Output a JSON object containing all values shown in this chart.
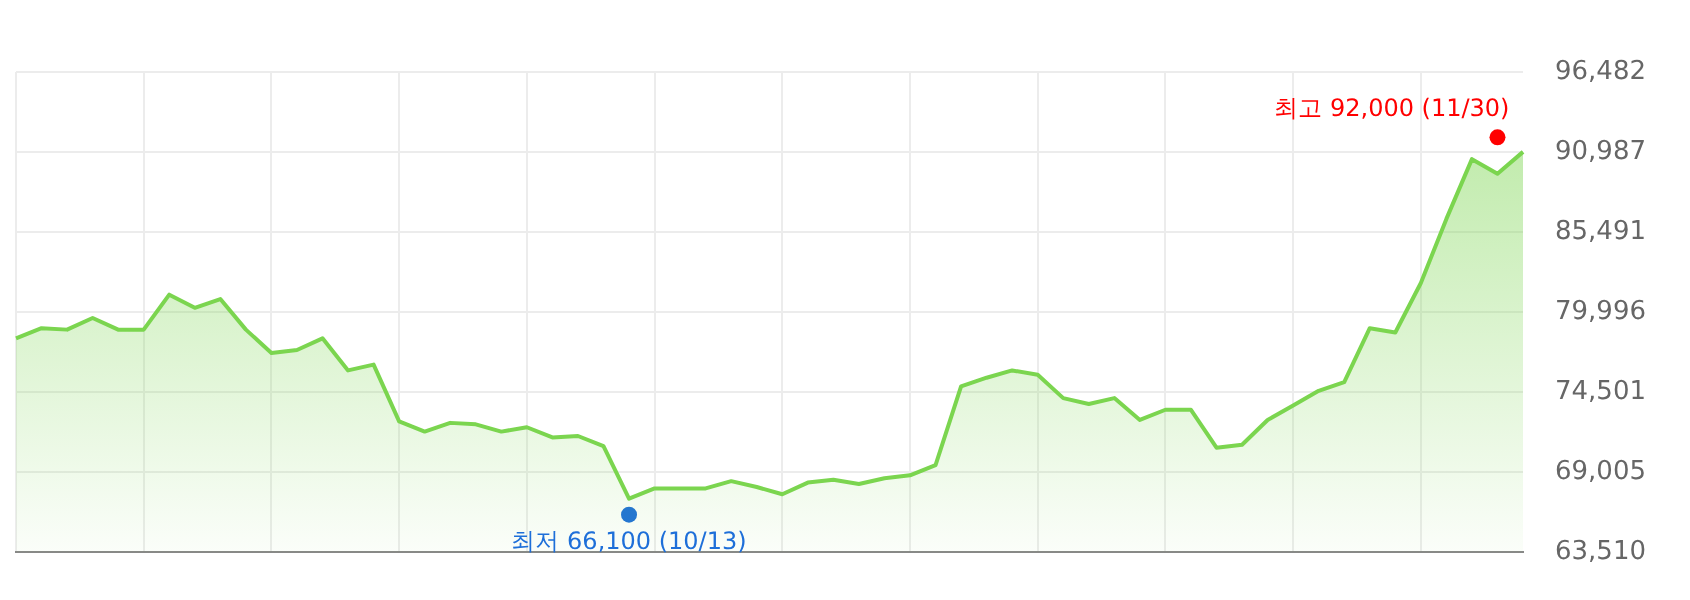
{
  "chart_data": {
    "type": "area",
    "categories": [
      null,
      null,
      null,
      null,
      null,
      null,
      null,
      null,
      null,
      null,
      null,
      null,
      null,
      null,
      null,
      null,
      null,
      null,
      null,
      null,
      null,
      null,
      null,
      null,
      null,
      null,
      null,
      null,
      null,
      null,
      null,
      null,
      null,
      null,
      null,
      null,
      null,
      null,
      null,
      null,
      null,
      null,
      null,
      null,
      null,
      null,
      null,
      null,
      null,
      null,
      null,
      null,
      null,
      null,
      null,
      null,
      null,
      null,
      null,
      null
    ],
    "series": [
      {
        "color": "#7bd54f",
        "marker": "none",
        "values": [
          78200,
          78900,
          78800,
          79600,
          78800,
          78800,
          81200,
          80300,
          80900,
          78800,
          77200,
          77400,
          78200,
          76000,
          76400,
          72500,
          71800,
          72400,
          72300,
          71800,
          72100,
          71400,
          71500,
          70800,
          67200,
          67900,
          67900,
          67900,
          68400,
          68000,
          67500,
          68300,
          68500,
          68200,
          68600,
          68800,
          69500,
          74900,
          75500,
          76000,
          75700,
          74100,
          73700,
          74100,
          72600,
          73300,
          73300,
          70700,
          70900,
          72600,
          73600,
          74600,
          75200,
          78900,
          78600,
          82000,
          86400,
          90500,
          89500,
          91000
        ]
      },
      {
        "type": "scatter",
        "color": "#ff0000",
        "marker": "circle",
        "values": [
          null,
          null,
          null,
          null,
          null,
          null,
          null,
          null,
          null,
          null,
          null,
          null,
          null,
          null,
          null,
          null,
          null,
          null,
          null,
          null,
          null,
          null,
          null,
          null,
          null,
          null,
          null,
          null,
          null,
          null,
          null,
          null,
          null,
          null,
          null,
          null,
          null,
          null,
          null,
          null,
          null,
          null,
          null,
          null,
          null,
          null,
          null,
          null,
          null,
          null,
          null,
          null,
          null,
          null,
          null,
          null,
          null,
          null,
          92000,
          null
        ],
        "value_labels": [
          null,
          null,
          null,
          null,
          null,
          null,
          null,
          null,
          null,
          null,
          null,
          null,
          null,
          null,
          null,
          null,
          null,
          null,
          null,
          null,
          null,
          null,
          null,
          null,
          null,
          null,
          null,
          null,
          null,
          null,
          null,
          null,
          null,
          null,
          null,
          null,
          null,
          null,
          null,
          null,
          null,
          null,
          null,
          null,
          null,
          null,
          null,
          null,
          null,
          null,
          null,
          null,
          null,
          null,
          null,
          null,
          null,
          null,
          "최고 92,000 (11/30)",
          null
        ]
      },
      {
        "type": "scatter",
        "color": "#1e6fd9",
        "marker": "circle",
        "values": [
          null,
          null,
          null,
          null,
          null,
          null,
          null,
          null,
          null,
          null,
          null,
          null,
          null,
          null,
          null,
          null,
          null,
          null,
          null,
          null,
          null,
          null,
          null,
          null,
          66100,
          null,
          null,
          null,
          null,
          null,
          null,
          null,
          null,
          null,
          null,
          null,
          null,
          null,
          null,
          null,
          null,
          null,
          null,
          null,
          null,
          null,
          null,
          null,
          null,
          null,
          null,
          null,
          null,
          null,
          null,
          null,
          null,
          null,
          null,
          null
        ],
        "value_labels": [
          null,
          null,
          null,
          null,
          null,
          null,
          null,
          null,
          null,
          null,
          null,
          null,
          null,
          null,
          null,
          null,
          null,
          null,
          null,
          null,
          null,
          null,
          null,
          null,
          "최저 66,100 (10/13)",
          null,
          null,
          null,
          null,
          null,
          null,
          null,
          null,
          null,
          null,
          null,
          null,
          null,
          null,
          null,
          null,
          null,
          null,
          null,
          null,
          null,
          null,
          null,
          null,
          null,
          null,
          null,
          null,
          null,
          null,
          null,
          null,
          null,
          null,
          null
        ]
      }
    ],
    "ylim": [
      63510,
      96482
    ],
    "yticks": [
      {
        "value": 63510,
        "label": "63,510"
      },
      {
        "value": 69005,
        "label": "69,005"
      },
      {
        "value": 74501,
        "label": "74,501"
      },
      {
        "value": 79996,
        "label": "79,996"
      },
      {
        "value": 85491,
        "label": "85,491"
      },
      {
        "value": 90987,
        "label": "90,987"
      },
      {
        "value": 96482,
        "label": "96,482"
      }
    ],
    "grid": true,
    "tick_labels": "y"
  }
}
